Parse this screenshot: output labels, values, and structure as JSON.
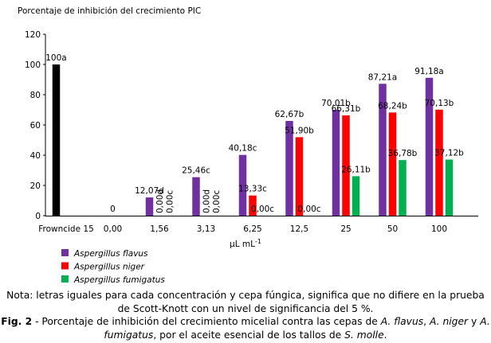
{
  "chart_data": {
    "type": "bar",
    "y_axis_label": "Porcentaje de inhibición del crecimiento PIC",
    "x_axis_label": "µL mL",
    "x_axis_label_superscript": "-1",
    "categories": [
      "Frowncide 15",
      "0,00",
      "1,56",
      "3,13",
      "6,25",
      "12,5",
      "25",
      "50",
      "100"
    ],
    "control": {
      "color": "#000000",
      "values": [
        100,
        null,
        null,
        null,
        null,
        null,
        null,
        null,
        null
      ],
      "value_labels": [
        "100a",
        null,
        null,
        null,
        null,
        null,
        null,
        null,
        null
      ]
    },
    "series": [
      {
        "name": "Aspergillus flavus",
        "color": "#7030a0",
        "values": [
          null,
          0,
          12.07,
          25.46,
          40.18,
          62.67,
          70.01,
          87.21,
          91.18
        ],
        "value_labels": [
          null,
          "0",
          "12,07d",
          "25,46c",
          "40,18c",
          "62,67b",
          "70,01b",
          "87,21a",
          "91,18a"
        ]
      },
      {
        "name": "Aspergillus niger",
        "color": "#ff0000",
        "values": [
          null,
          null,
          0,
          0,
          13.33,
          51.9,
          66.31,
          68.24,
          70.13
        ],
        "value_labels": [
          null,
          null,
          "0,00d",
          "0,00d",
          "13,33c",
          "51,90b",
          "66,31b",
          "68,24b",
          "70,13b"
        ]
      },
      {
        "name": "Aspergillus fumigatus",
        "color": "#00b050",
        "values": [
          null,
          null,
          0,
          0,
          0,
          0,
          26.11,
          36.78,
          37.12
        ],
        "value_labels": [
          null,
          null,
          "0,00c",
          "0,00c",
          "0,00c",
          "0,00c",
          "26,11b",
          "36,78b",
          "37,12b"
        ]
      }
    ],
    "ylim": [
      0,
      120
    ],
    "yticks": [
      0,
      20,
      40,
      60,
      80,
      100,
      120
    ],
    "grid": false
  },
  "caption": {
    "note": "Nota: letras iguales para cada concentración y cepa fúngica, significa que no difiere en la prueba de Scott-Knott con un nivel de significancia del 5 %.",
    "parts": [
      "Fig. 2",
      " - Porcentaje de inhibición del crecimiento micelial contra las cepas de ",
      "A. flavus",
      ", ",
      "A. niger",
      " y ",
      "A. fumigatus",
      ", por el aceite esencial de los tallos de ",
      "S. molle",
      "."
    ]
  }
}
